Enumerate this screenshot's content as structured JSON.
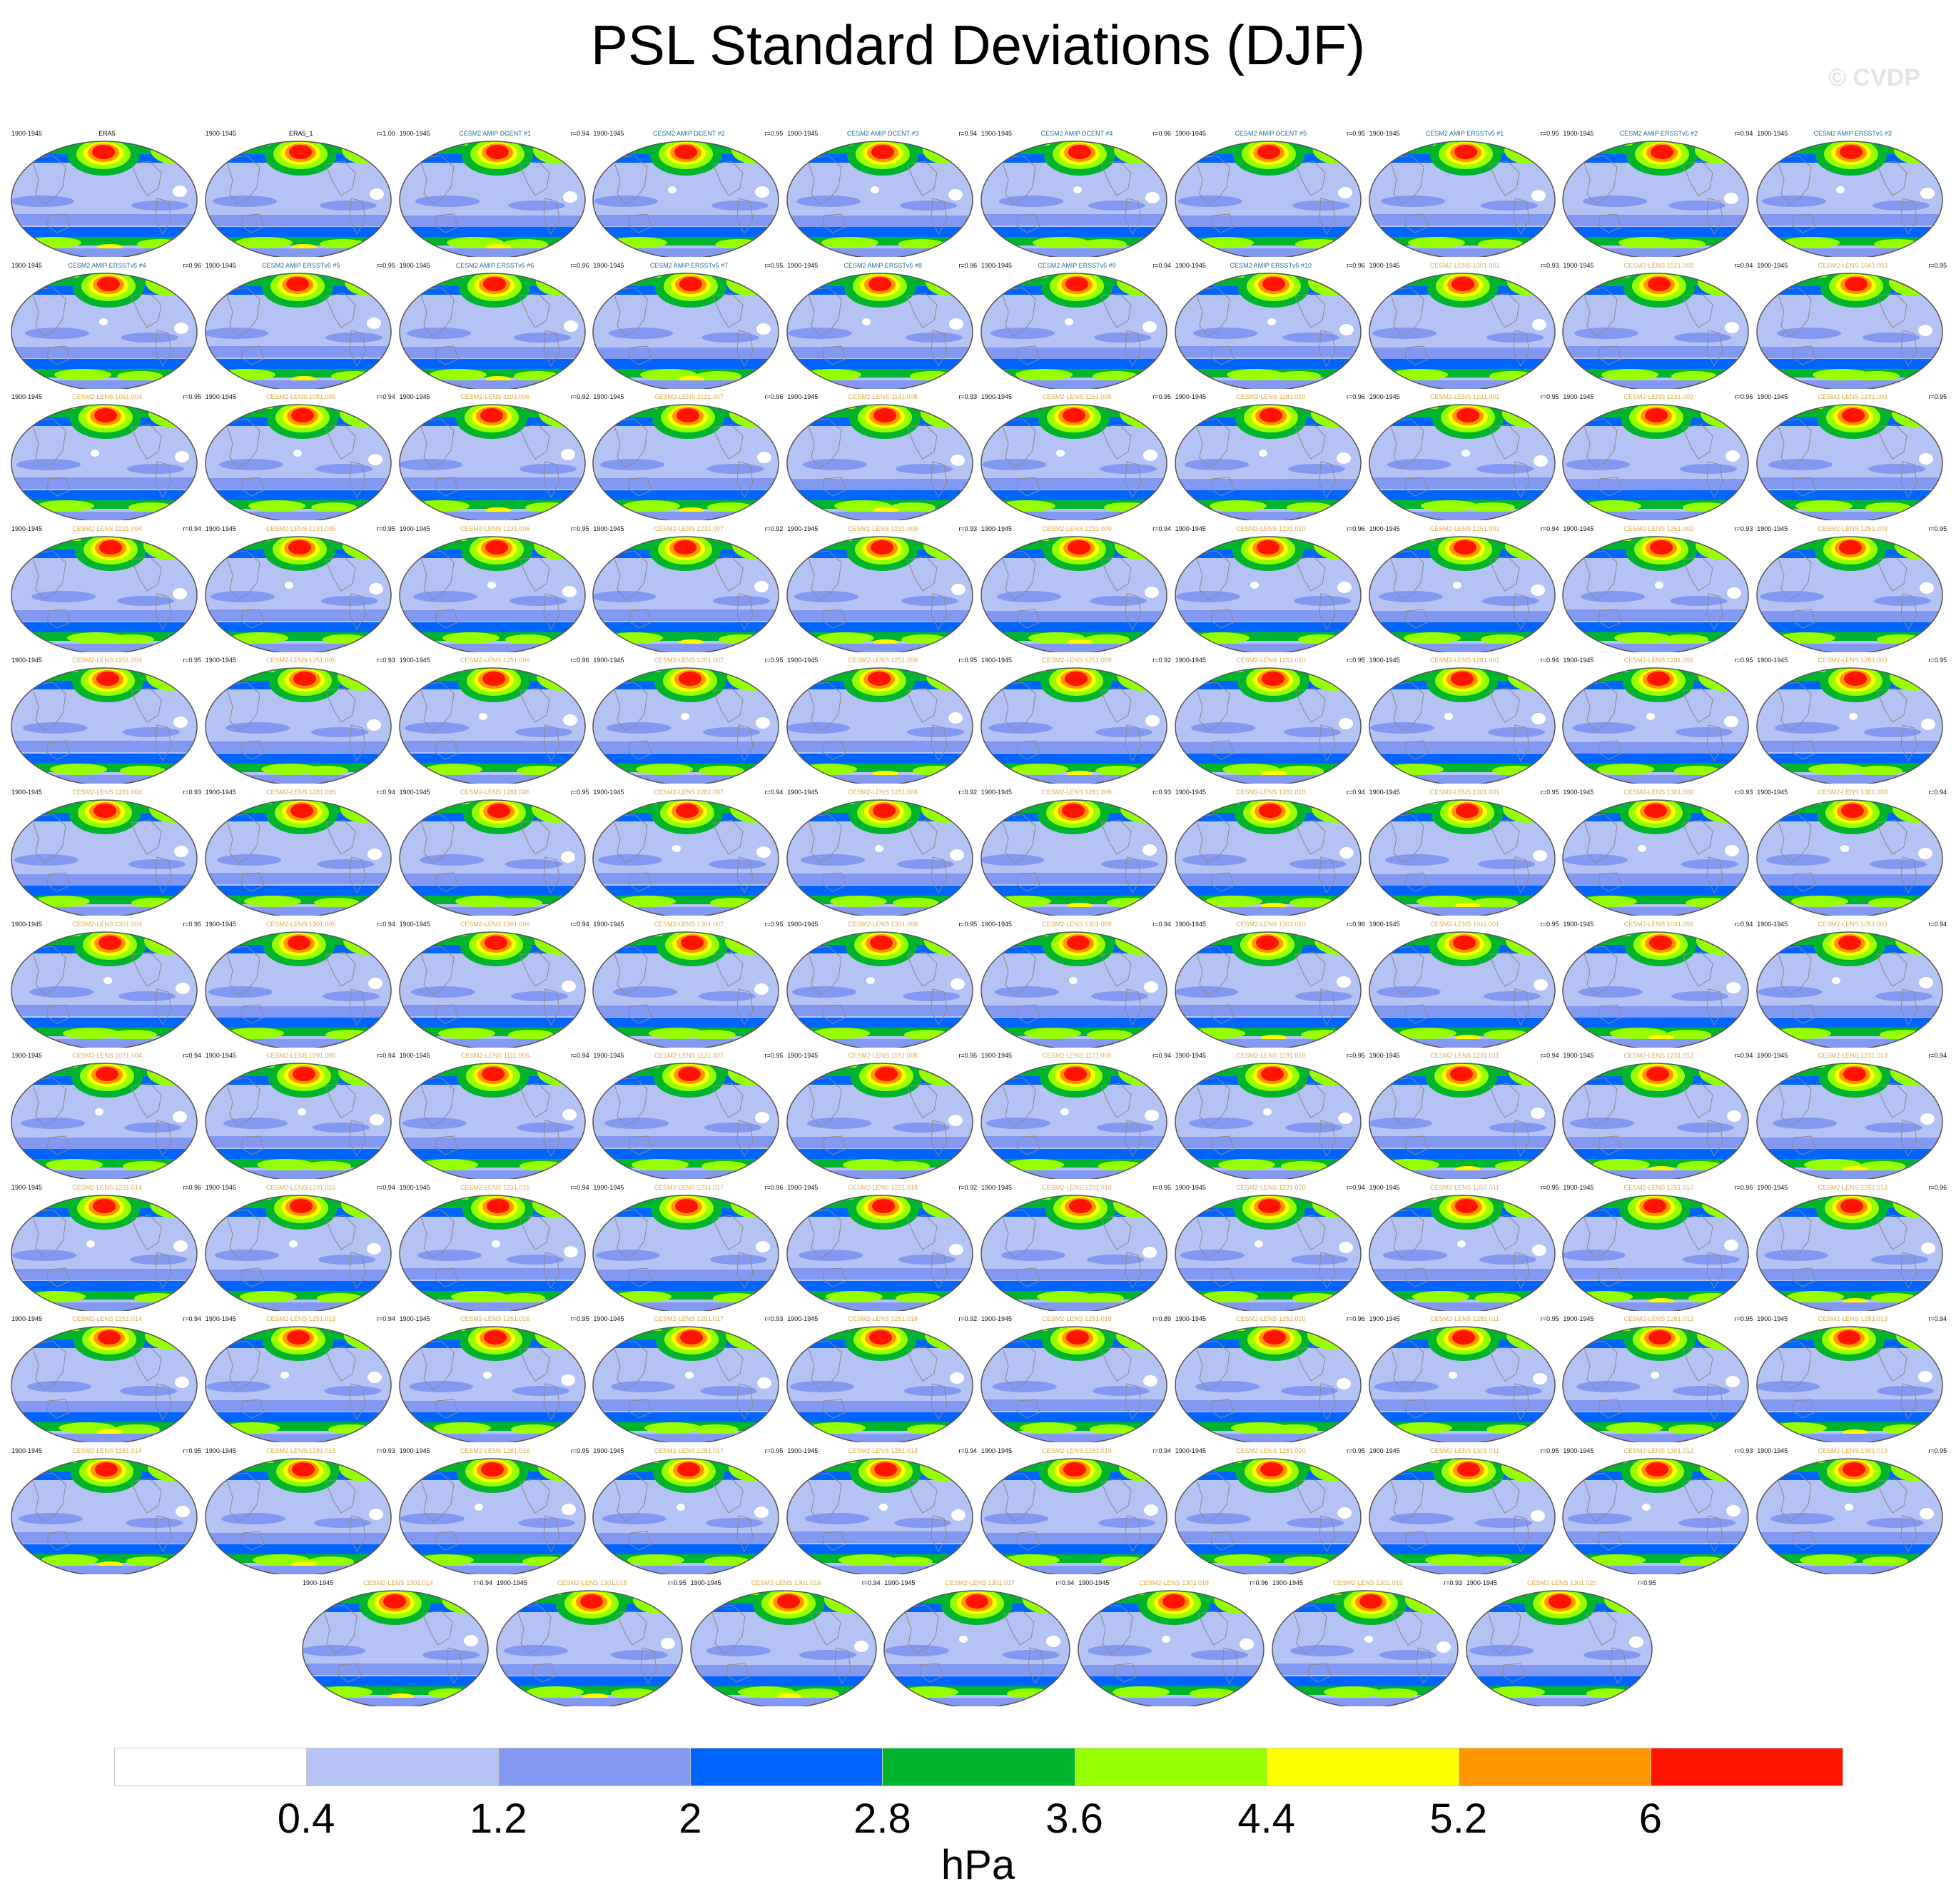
{
  "title": "PSL Standard Deviations (DJF)",
  "watermark": "© CVDP",
  "period": "1900-1945",
  "chart_data": {
    "type": "heatmap",
    "title": "PSL Standard Deviations (DJF)",
    "units": "hPa",
    "colorbar": {
      "levels": [
        0.4,
        1.2,
        2,
        2.8,
        3.6,
        4.4,
        5.2,
        6
      ],
      "labels": [
        "0.4",
        "1.2",
        "2",
        "2.8",
        "3.6",
        "4.4",
        "5.2",
        "6"
      ],
      "colors": [
        "#ffffff",
        "#b4c2f4",
        "#8398f0",
        "#0064ff",
        "#00b42d",
        "#96ff00",
        "#ffff00",
        "#ff9600",
        "#ff1400"
      ]
    },
    "panel_layout": {
      "columns": 10,
      "full_rows": 11,
      "last_row_count": 7
    },
    "panels": [
      {
        "name": "ERA5",
        "r": ""
      },
      {
        "name": "ERA5_1",
        "r": "r=1.00"
      },
      {
        "name": "CESM2 AMIP DCENT #1",
        "r": "r=0.94"
      },
      {
        "name": "CESM2 AMIP DCENT #2",
        "r": "r=0.95"
      },
      {
        "name": "CESM2 AMIP DCENT #3",
        "r": "r=0.94"
      },
      {
        "name": "CESM2 AMIP DCENT #4",
        "r": "r=0.96"
      },
      {
        "name": "CESM2 AMIP DCENT #5",
        "r": "r=0.95"
      },
      {
        "name": "CESM2 AMIP ERSSTv5 #1",
        "r": "r=0.95"
      },
      {
        "name": "CESM2 AMIP ERSSTv5 #2",
        "r": "r=0.94"
      },
      {
        "name": "CESM2 AMIP ERSSTv5 #3",
        "r": ""
      },
      {
        "name": "CESM2 AMIP ERSSTv5 #4",
        "r": "r=0.96"
      },
      {
        "name": "CESM2 AMIP ERSSTv5 #5",
        "r": "r=0.95"
      },
      {
        "name": "CESM2 AMIP ERSSTv5 #6",
        "r": "r=0.96"
      },
      {
        "name": "CESM2 AMIP ERSSTv5 #7",
        "r": "r=0.95"
      },
      {
        "name": "CESM2 AMIP ERSSTv5 #8",
        "r": "r=0.96"
      },
      {
        "name": "CESM2 AMIP ERSSTv5 #9",
        "r": "r=0.94"
      },
      {
        "name": "CESM2 AMIP ERSSTv5 #10",
        "r": "r=0.96"
      },
      {
        "name": "CESM2-LENS 1001.001",
        "r": "r=0.93"
      },
      {
        "name": "CESM2-LENS 1021.002",
        "r": "r=0.94"
      },
      {
        "name": "CESM2-LENS 1041.003",
        "r": "r=0.95"
      },
      {
        "name": "CESM2-LENS 1061.004",
        "r": "r=0.95"
      },
      {
        "name": "CESM2-LENS 1081.005",
        "r": "r=0.94"
      },
      {
        "name": "CESM2-LENS 1101.006",
        "r": "r=0.92"
      },
      {
        "name": "CESM2-LENS 1121.007",
        "r": "r=0.96"
      },
      {
        "name": "CESM2-LENS 1141.008",
        "r": "r=0.93"
      },
      {
        "name": "CESM2-LENS 1161.009",
        "r": "r=0.95"
      },
      {
        "name": "CESM2-LENS 1181.010",
        "r": "r=0.96"
      },
      {
        "name": "CESM2-LENS 1231.001",
        "r": "r=0.95"
      },
      {
        "name": "CESM2-LENS 1231.002",
        "r": "r=0.96"
      },
      {
        "name": "CESM2-LENS 1231.003",
        "r": "r=0.95"
      },
      {
        "name": "CESM2-LENS 1231.004",
        "r": "r=0.94"
      },
      {
        "name": "CESM2-LENS 1231.005",
        "r": "r=0.95"
      },
      {
        "name": "CESM2-LENS 1231.006",
        "r": "r=0.95"
      },
      {
        "name": "CESM2-LENS 1231.007",
        "r": "r=0.92"
      },
      {
        "name": "CESM2-LENS 1231.008",
        "r": "r=0.93"
      },
      {
        "name": "CESM2-LENS 1231.009",
        "r": "r=0.94"
      },
      {
        "name": "CESM2-LENS 1231.010",
        "r": "r=0.96"
      },
      {
        "name": "CESM2-LENS 1251.001",
        "r": "r=0.94"
      },
      {
        "name": "CESM2-LENS 1251.002",
        "r": "r=0.93"
      },
      {
        "name": "CESM2-LENS 1251.003",
        "r": "r=0.95"
      },
      {
        "name": "CESM2-LENS 1251.004",
        "r": "r=0.95"
      },
      {
        "name": "CESM2-LENS 1251.005",
        "r": "r=0.93"
      },
      {
        "name": "CESM2-LENS 1251.006",
        "r": "r=0.96"
      },
      {
        "name": "CESM2-LENS 1251.007",
        "r": "r=0.95"
      },
      {
        "name": "CESM2-LENS 1251.008",
        "r": "r=0.95"
      },
      {
        "name": "CESM2-LENS 1251.009",
        "r": "r=0.92"
      },
      {
        "name": "CESM2-LENS 1251.010",
        "r": "r=0.95"
      },
      {
        "name": "CESM2-LENS 1281.001",
        "r": "r=0.94"
      },
      {
        "name": "CESM2-LENS 1281.002",
        "r": "r=0.95"
      },
      {
        "name": "CESM2-LENS 1281.003",
        "r": "r=0.95"
      },
      {
        "name": "CESM2-LENS 1281.004",
        "r": "r=0.93"
      },
      {
        "name": "CESM2-LENS 1281.005",
        "r": "r=0.94"
      },
      {
        "name": "CESM2-LENS 1281.006",
        "r": "r=0.95"
      },
      {
        "name": "CESM2-LENS 1281.007",
        "r": "r=0.94"
      },
      {
        "name": "CESM2-LENS 1281.008",
        "r": "r=0.92"
      },
      {
        "name": "CESM2-LENS 1281.009",
        "r": "r=0.93"
      },
      {
        "name": "CESM2-LENS 1281.010",
        "r": "r=0.94"
      },
      {
        "name": "CESM2-LENS 1301.001",
        "r": "r=0.95"
      },
      {
        "name": "CESM2-LENS 1301.002",
        "r": "r=0.93"
      },
      {
        "name": "CESM2-LENS 1301.003",
        "r": "r=0.94"
      },
      {
        "name": "CESM2-LENS 1301.004",
        "r": "r=0.95"
      },
      {
        "name": "CESM2-LENS 1301.005",
        "r": "r=0.94"
      },
      {
        "name": "CESM2-LENS 1301.006",
        "r": "r=0.94"
      },
      {
        "name": "CESM2-LENS 1301.007",
        "r": "r=0.95"
      },
      {
        "name": "CESM2-LENS 1301.008",
        "r": "r=0.95"
      },
      {
        "name": "CESM2-LENS 1301.009",
        "r": "r=0.94"
      },
      {
        "name": "CESM2-LENS 1301.010",
        "r": "r=0.96"
      },
      {
        "name": "CESM2-LENS 1011.001",
        "r": "r=0.95"
      },
      {
        "name": "CESM2-LENS 1031.002",
        "r": "r=0.94"
      },
      {
        "name": "CESM2-LENS 1051.003",
        "r": "r=0.94"
      },
      {
        "name": "CESM2-LENS 1071.004",
        "r": "r=0.94"
      },
      {
        "name": "CESM2-LENS 1091.005",
        "r": "r=0.94"
      },
      {
        "name": "CESM2-LENS 1111.006",
        "r": "r=0.94"
      },
      {
        "name": "CESM2-LENS 1131.007",
        "r": "r=0.95"
      },
      {
        "name": "CESM2-LENS 1151.008",
        "r": "r=0.95"
      },
      {
        "name": "CESM2-LENS 1171.009",
        "r": "r=0.94"
      },
      {
        "name": "CESM2-LENS 1191.010",
        "r": "r=0.95"
      },
      {
        "name": "CESM2-LENS 1231.011",
        "r": "r=0.94"
      },
      {
        "name": "CESM2-LENS 1231.012",
        "r": "r=0.94"
      },
      {
        "name": "CESM2-LENS 1231.013",
        "r": "r=0.94"
      },
      {
        "name": "CESM2-LENS 1231.014",
        "r": "r=0.96"
      },
      {
        "name": "CESM2-LENS 1231.015",
        "r": "r=0.94"
      },
      {
        "name": "CESM2-LENS 1231.016",
        "r": "r=0.94"
      },
      {
        "name": "CESM2-LENS 1231.017",
        "r": "r=0.96"
      },
      {
        "name": "CESM2-LENS 1231.018",
        "r": "r=0.92"
      },
      {
        "name": "CESM2-LENS 1231.019",
        "r": "r=0.95"
      },
      {
        "name": "CESM2-LENS 1231.020",
        "r": "r=0.94"
      },
      {
        "name": "CESM2-LENS 1251.011",
        "r": "r=0.95"
      },
      {
        "name": "CESM2-LENS 1251.012",
        "r": "r=0.95"
      },
      {
        "name": "CESM2-LENS 1251.013",
        "r": "r=0.96"
      },
      {
        "name": "CESM2-LENS 1251.014",
        "r": "r=0.94"
      },
      {
        "name": "CESM2-LENS 1251.015",
        "r": "r=0.94"
      },
      {
        "name": "CESM2-LENS 1251.016",
        "r": "r=0.95"
      },
      {
        "name": "CESM2-LENS 1251.017",
        "r": "r=0.93"
      },
      {
        "name": "CESM2-LENS 1251.018",
        "r": "r=0.92"
      },
      {
        "name": "CESM2-LENS 1251.019",
        "r": "r=0.89"
      },
      {
        "name": "CESM2-LENS 1251.020",
        "r": "r=0.96"
      },
      {
        "name": "CESM2-LENS 1281.011",
        "r": "r=0.95"
      },
      {
        "name": "CESM2-LENS 1281.012",
        "r": "r=0.95"
      },
      {
        "name": "CESM2-LENS 1281.013",
        "r": "r=0.94"
      },
      {
        "name": "CESM2-LENS 1281.014",
        "r": "r=0.95"
      },
      {
        "name": "CESM2-LENS 1281.015",
        "r": "r=0.93"
      },
      {
        "name": "CESM2-LENS 1281.016",
        "r": "r=0.95"
      },
      {
        "name": "CESM2-LENS 1281.017",
        "r": "r=0.95"
      },
      {
        "name": "CESM2-LENS 1281.018",
        "r": "r=0.94"
      },
      {
        "name": "CESM2-LENS 1281.019",
        "r": "r=0.94"
      },
      {
        "name": "CESM2-LENS 1281.020",
        "r": "r=0.95"
      },
      {
        "name": "CESM2-LENS 1301.011",
        "r": "r=0.95"
      },
      {
        "name": "CESM2-LENS 1301.012",
        "r": "r=0.93"
      },
      {
        "name": "CESM2-LENS 1301.013",
        "r": "r=0.95"
      },
      {
        "name": "CESM2-LENS 1301.014",
        "r": "r=0.94"
      },
      {
        "name": "CESM2-LENS 1301.015",
        "r": "r=0.95"
      },
      {
        "name": "CESM2-LENS 1301.016",
        "r": "r=0.94"
      },
      {
        "name": "CESM2-LENS 1301.017",
        "r": "r=0.94"
      },
      {
        "name": "CESM2-LENS 1301.018",
        "r": "r=0.96"
      },
      {
        "name": "CESM2-LENS 1301.019",
        "r": "r=0.93"
      },
      {
        "name": "CESM2-LENS 1301.020",
        "r": "r=0.95"
      }
    ],
    "title_colors": {
      "observations": "#000000",
      "amip": "#1a6ea0",
      "lens": "#e0a84a"
    }
  }
}
